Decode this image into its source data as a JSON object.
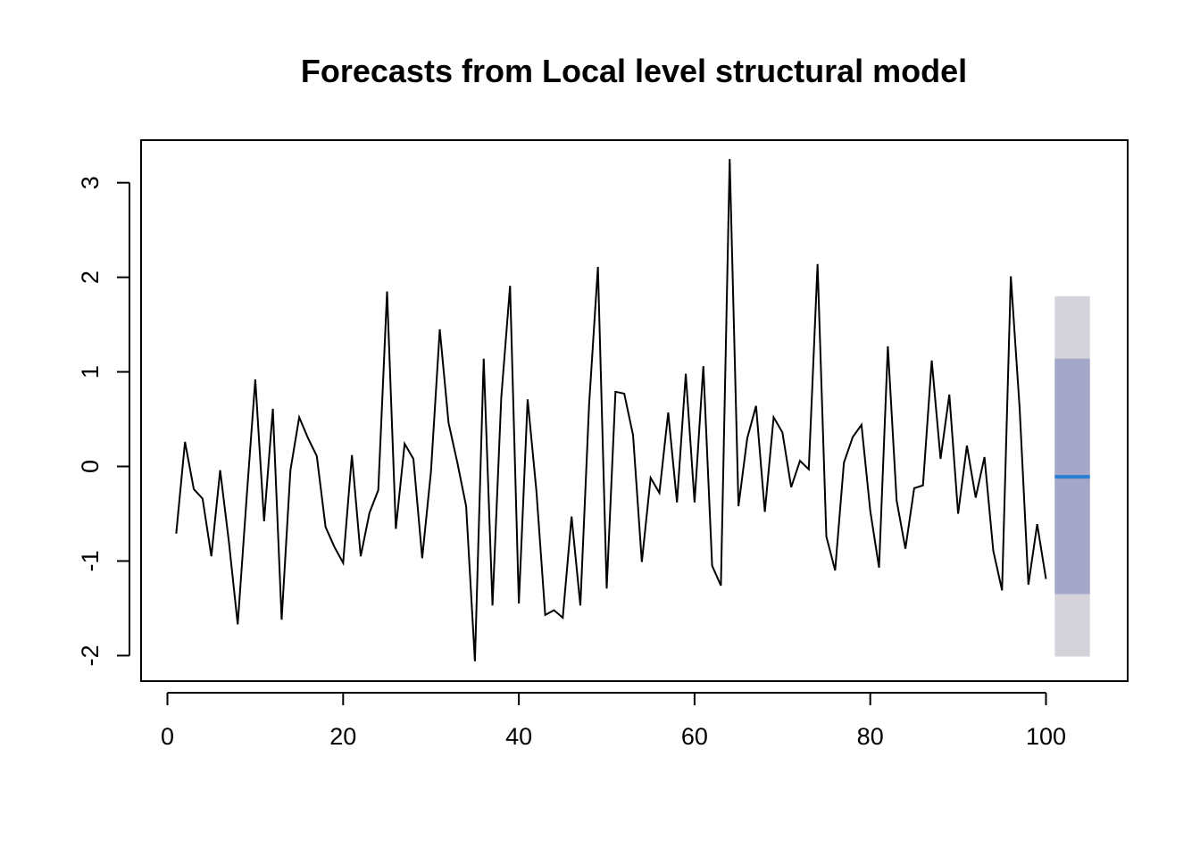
{
  "chart_data": {
    "type": "line",
    "title": "Forecasts from Local level structural model",
    "xlabel": "",
    "ylabel": "",
    "xlim": [
      -3,
      109.3
    ],
    "ylim": [
      -2.27,
      3.45
    ],
    "x_ticks": [
      0,
      20,
      40,
      60,
      80,
      100
    ],
    "y_ticks": [
      -2,
      -1,
      0,
      1,
      2,
      3
    ],
    "grid": false,
    "legend": "none",
    "series": [
      {
        "x_start": 1,
        "values": [
          -0.71,
          0.26,
          -0.24,
          -0.34,
          -0.95,
          -0.04,
          -0.8,
          -1.67,
          -0.35,
          0.92,
          -0.58,
          0.61,
          -1.62,
          -0.04,
          0.52,
          0.3,
          0.11,
          -0.64,
          -0.85,
          -1.02,
          0.12,
          -0.95,
          -0.49,
          -0.25,
          1.85,
          -0.66,
          0.24,
          0.08,
          -0.97,
          -0.05,
          1.45,
          0.46,
          0.04,
          -0.42,
          -2.06,
          1.14,
          -1.47,
          0.73,
          1.91,
          -1.45,
          0.71,
          -0.26,
          -1.57,
          -1.52,
          -1.6,
          -0.53,
          -1.47,
          0.66,
          2.11,
          -1.29,
          0.79,
          0.77,
          0.33,
          -1.01,
          -0.12,
          -0.28,
          0.57,
          -0.38,
          0.98,
          -0.38,
          1.06,
          -1.05,
          -1.26,
          3.25,
          -0.42,
          0.3,
          0.64,
          -0.48,
          0.52,
          0.36,
          -0.22,
          0.06,
          -0.03,
          2.14,
          -0.74,
          -1.1,
          0.04,
          0.31,
          0.44,
          -0.47,
          -1.07,
          1.27,
          -0.36,
          -0.87,
          -0.23,
          -0.2,
          1.12,
          0.08,
          0.76,
          -0.5,
          0.22,
          -0.33,
          0.1,
          -0.89,
          -1.31,
          2.01,
          0.62,
          -1.25,
          -0.61,
          -1.19
        ],
        "color": "#000000"
      }
    ],
    "forecast": {
      "x_start": 101,
      "x_end": 105,
      "mean": -0.11,
      "lo80": -1.35,
      "hi80": 1.14,
      "lo95": -2.01,
      "hi95": 1.8,
      "mean_color": "#2a7fd4",
      "band80_color": "#a4a7c8",
      "band95_color": "#d4d3da"
    }
  }
}
